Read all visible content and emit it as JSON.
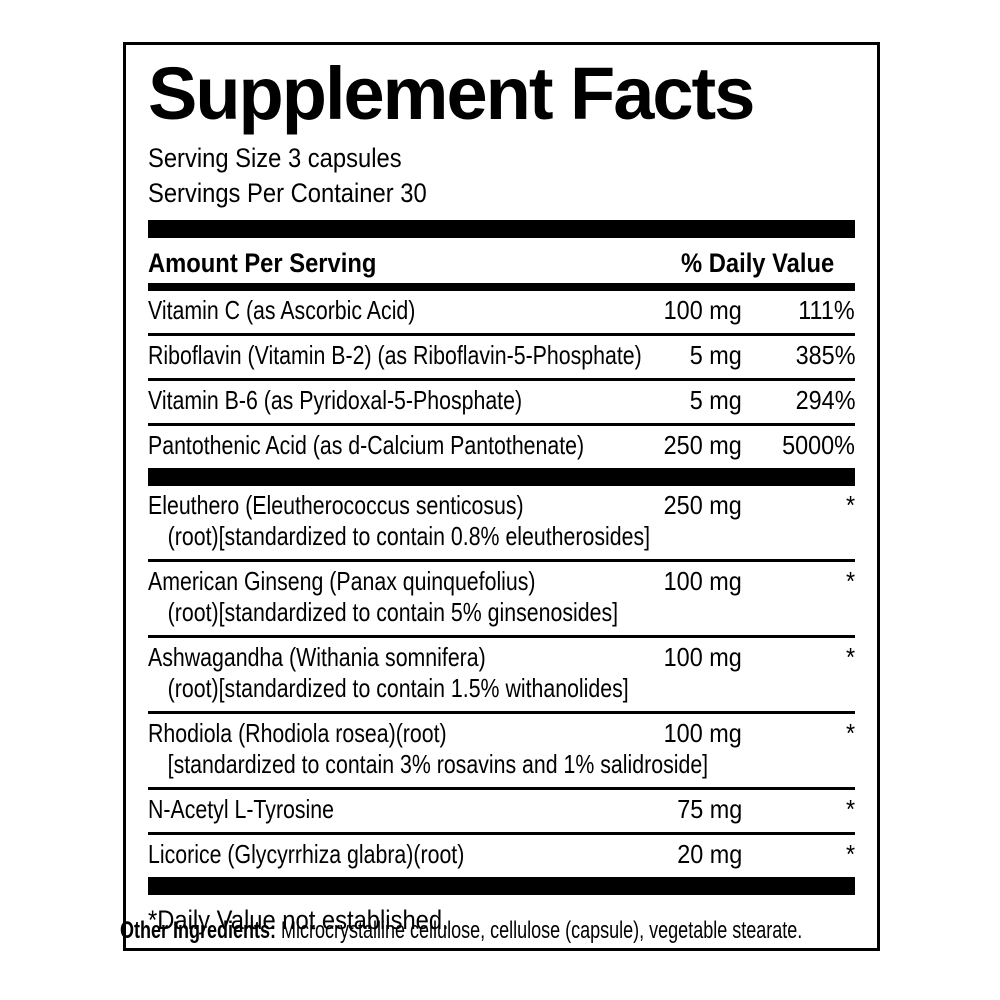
{
  "label": {
    "title": "Supplement Facts",
    "serving_size": "Serving Size 3 capsules",
    "servings_per_container": "Servings Per Container 30",
    "header": {
      "amount": "Amount Per Serving",
      "daily_value": "% Daily Value"
    },
    "rows": [
      {
        "name": "Vitamin C (as Ascorbic Acid)",
        "amount": "100 mg",
        "dv": "111%"
      },
      {
        "name": "Riboflavin (Vitamin B-2) (as Riboflavin-5-Phosphate)",
        "amount": "5 mg",
        "dv": "385%"
      },
      {
        "name": "Vitamin B-6 (as Pyridoxal-5-Phosphate)",
        "amount": "5 mg",
        "dv": "294%"
      },
      {
        "name": "Pantothenic Acid (as d-Calcium Pantothenate)",
        "amount": "250 mg",
        "dv": "5000%",
        "bar_after": true
      },
      {
        "name": "Eleuthero (Eleutherococcus senticosus)",
        "sub": "(root)[standardized to contain 0.8% eleutherosides]",
        "amount": "250 mg",
        "dv": "*"
      },
      {
        "name": "American Ginseng (Panax quinquefolius)",
        "sub": "(root)[standardized to contain 5% ginsenosides]",
        "amount": "100 mg",
        "dv": "*"
      },
      {
        "name": "Ashwagandha (Withania somnifera)",
        "sub": "(root)[standardized to contain 1.5% withanolides]",
        "amount": "100 mg",
        "dv": "*"
      },
      {
        "name": "Rhodiola (Rhodiola rosea)(root)",
        "sub": "[standardized to contain 3% rosavins and 1% salidroside]",
        "amount": "100 mg",
        "dv": "*"
      },
      {
        "name": "N-Acetyl L-Tyrosine",
        "amount": "75 mg",
        "dv": "*"
      },
      {
        "name": "Licorice (Glycyrrhiza glabra)(root)",
        "amount": "20 mg",
        "dv": "*",
        "bar_after": true
      }
    ],
    "footnote": "*Daily Value not established.",
    "other_ingredients": {
      "label": "Other Ingredients:",
      "text": " Microcrystalline cellulose, cellulose (capsule), vegetable stearate."
    },
    "colors": {
      "ink": "#000000",
      "background": "#ffffff"
    }
  }
}
